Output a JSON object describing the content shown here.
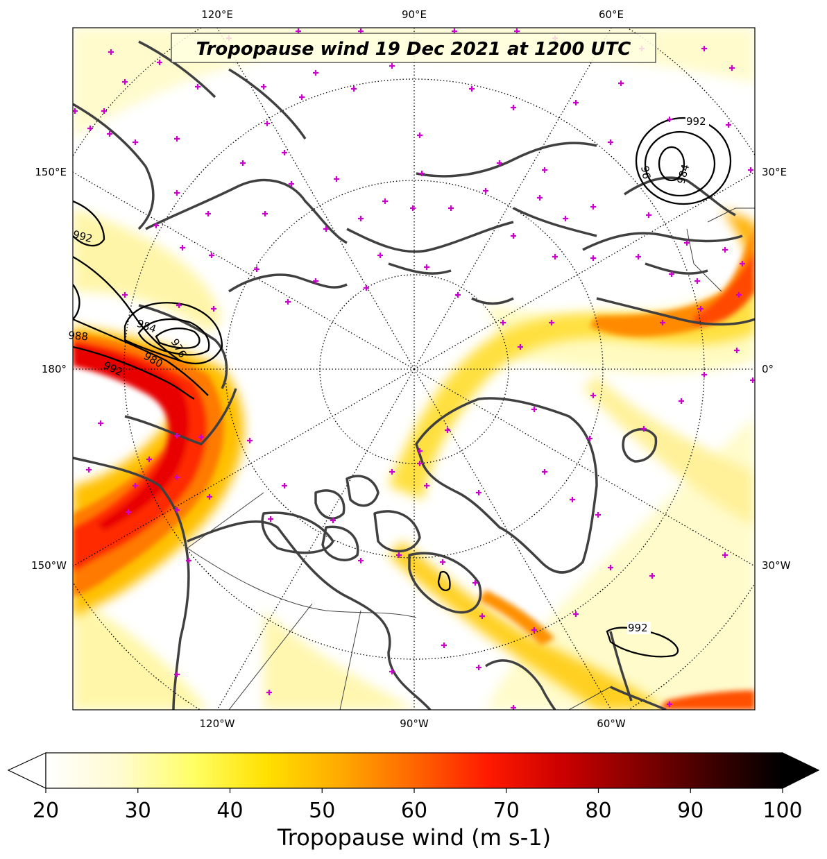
{
  "title": "Tropopause wind 19 Dec 2021 at 1200 UTC",
  "colorbar": {
    "label": "Tropopause wind (m s-1)",
    "ticks": [
      20,
      30,
      40,
      50,
      60,
      70,
      80,
      90,
      100
    ],
    "range": [
      20,
      100
    ],
    "extend": "both",
    "colormap": [
      "#ffffff",
      "#fffbd0",
      "#ffff66",
      "#ffe000",
      "#ffaa00",
      "#ff6600",
      "#ff1a00",
      "#cc0000",
      "#880000",
      "#400000",
      "#000000"
    ]
  },
  "longitude_labels": {
    "top": [
      "120°E",
      "90°E",
      "60°E"
    ],
    "bottom": [
      "120°W",
      "90°W",
      "60°W"
    ],
    "left": [
      "150°E",
      "180°",
      "150°W"
    ],
    "right": [
      "30°E",
      "0°",
      "30°W"
    ]
  },
  "pressure_contours": [
    {
      "label": "992",
      "region": "northern Europe / Scandinavia"
    },
    {
      "label": "984",
      "region": "northern Europe / Scandinavia"
    },
    {
      "label": "96",
      "region": "northern Europe / Scandinavia"
    },
    {
      "label": "992",
      "region": "North Pacific / Bering Sea"
    },
    {
      "label": "988",
      "region": "North Pacific / Bering Sea"
    },
    {
      "label": "984",
      "region": "North Pacific / Bering Sea"
    },
    {
      "label": "976",
      "region": "North Pacific / Bering Sea"
    },
    {
      "label": "980",
      "region": "North Pacific / Bering Sea"
    },
    {
      "label": "992",
      "region": "North Pacific / Bering Sea"
    },
    {
      "label": "992",
      "region": "North Atlantic south of Greenland"
    }
  ],
  "colors": {
    "coastline": "#404040",
    "marker": "#cc00cc",
    "contour": "#000000"
  }
}
